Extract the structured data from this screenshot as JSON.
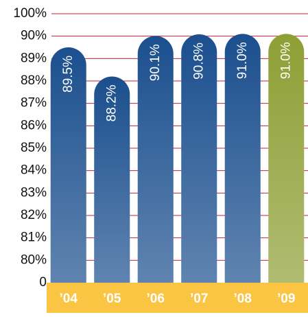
{
  "chart_data": {
    "type": "bar",
    "categories": [
      "’04",
      "’05",
      "’06",
      "’07",
      "’08",
      "’09"
    ],
    "values": [
      89.5,
      88.2,
      90.1,
      90.8,
      91.0,
      91.0
    ],
    "value_labels": [
      "89.5%",
      "88.2%",
      "90.1%",
      "90.8%",
      "91.0%",
      "91.0%"
    ],
    "colors": [
      "#1b4f8e",
      "#1b4f8e",
      "#1b4f8e",
      "#1b4f8e",
      "#1b4f8e",
      "#8e9f35"
    ],
    "yticks": [
      0,
      {
        "value": 80,
        "label": "80%"
      },
      {
        "value": 81,
        "label": "81%"
      },
      {
        "value": 82,
        "label": "82%"
      },
      {
        "value": 83,
        "label": "83%"
      },
      {
        "value": 84,
        "label": "84%"
      },
      {
        "value": 85,
        "label": "85%"
      },
      {
        "value": 86,
        "label": "86%"
      },
      {
        "value": 87,
        "label": "87%"
      },
      {
        "value": 88,
        "label": "88%"
      },
      {
        "value": 89,
        "label": "89%"
      },
      {
        "value": 90,
        "label": "90%"
      },
      {
        "value": 100,
        "label": "100%"
      }
    ],
    "ylim": [
      0,
      100
    ],
    "grid": true
  }
}
